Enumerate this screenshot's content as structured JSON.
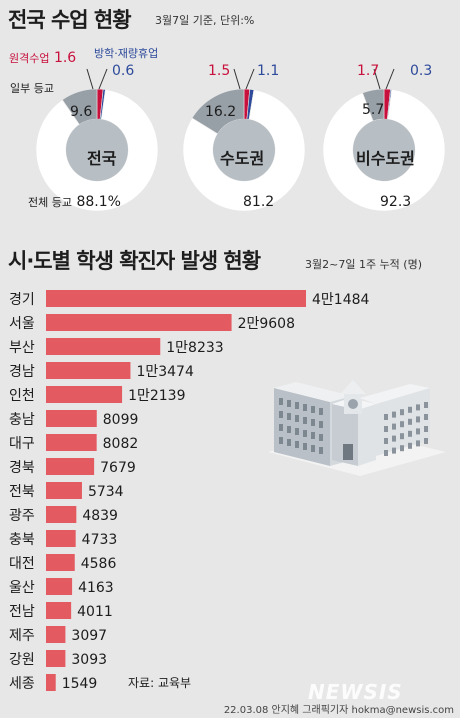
{
  "header": {
    "title": "전국 수업 현황",
    "note": "3월7일 기준, 단위:%"
  },
  "legend": {
    "remote": "원격수업",
    "partial": "일부 등교",
    "break": "방학·재량휴업",
    "full": "전체 등교"
  },
  "colors": {
    "full": "#ffffff",
    "partial": "#98a0a7",
    "remote": "#c8103c",
    "break": "#2d4a9b",
    "bar": "#e35a60",
    "hole": "#b7bfc5"
  },
  "chart_data": [
    {
      "type": "pie",
      "title": "",
      "categories": [
        "전체 등교",
        "일부 등교",
        "원격수업",
        "방학·재량휴업"
      ],
      "donuts": [
        {
          "name": "전국",
          "values": [
            88.1,
            9.6,
            1.6,
            0.6
          ],
          "labels": [
            "88.1%",
            "9.6",
            "1.6",
            "0.6"
          ]
        },
        {
          "name": "수도권",
          "values": [
            81.2,
            16.2,
            1.5,
            1.1
          ],
          "labels": [
            "81.2",
            "16.2",
            "1.5",
            "1.1"
          ]
        },
        {
          "name": "비수도권",
          "values": [
            92.3,
            5.7,
            1.7,
            0.3
          ],
          "labels": [
            "92.3",
            "5.7",
            "1.7",
            "0.3"
          ]
        }
      ]
    },
    {
      "type": "bar",
      "title": "시·도별 학생 확진자 발생 현황",
      "subtitle": "3월2~7일 1주 누적 (명)",
      "categories": [
        "경기",
        "서울",
        "부산",
        "경남",
        "인천",
        "충남",
        "대구",
        "경북",
        "전북",
        "광주",
        "충북",
        "대전",
        "울산",
        "전남",
        "제주",
        "강원",
        "세종"
      ],
      "values": [
        41484,
        29608,
        18233,
        13474,
        12139,
        8099,
        8082,
        7679,
        5734,
        4839,
        4733,
        4586,
        4163,
        4011,
        3097,
        3093,
        1549
      ],
      "value_labels": [
        "4만1484",
        "2만9608",
        "1만8233",
        "1만3474",
        "1만2139",
        "8099",
        "8082",
        "7679",
        "5734",
        "4839",
        "4733",
        "4586",
        "4163",
        "4011",
        "3097",
        "3093",
        "1549"
      ]
    }
  ],
  "bar_section": {
    "title": "시·도별 학생 확진자 발생 현황",
    "note": "3월2~7일 1주 누적 (명)"
  },
  "footer": {
    "source": "자료: 교육부",
    "credit": "22.03.08 안지혜 그래픽기자 hokma@newsis.com",
    "watermark": "NEWSIS"
  }
}
